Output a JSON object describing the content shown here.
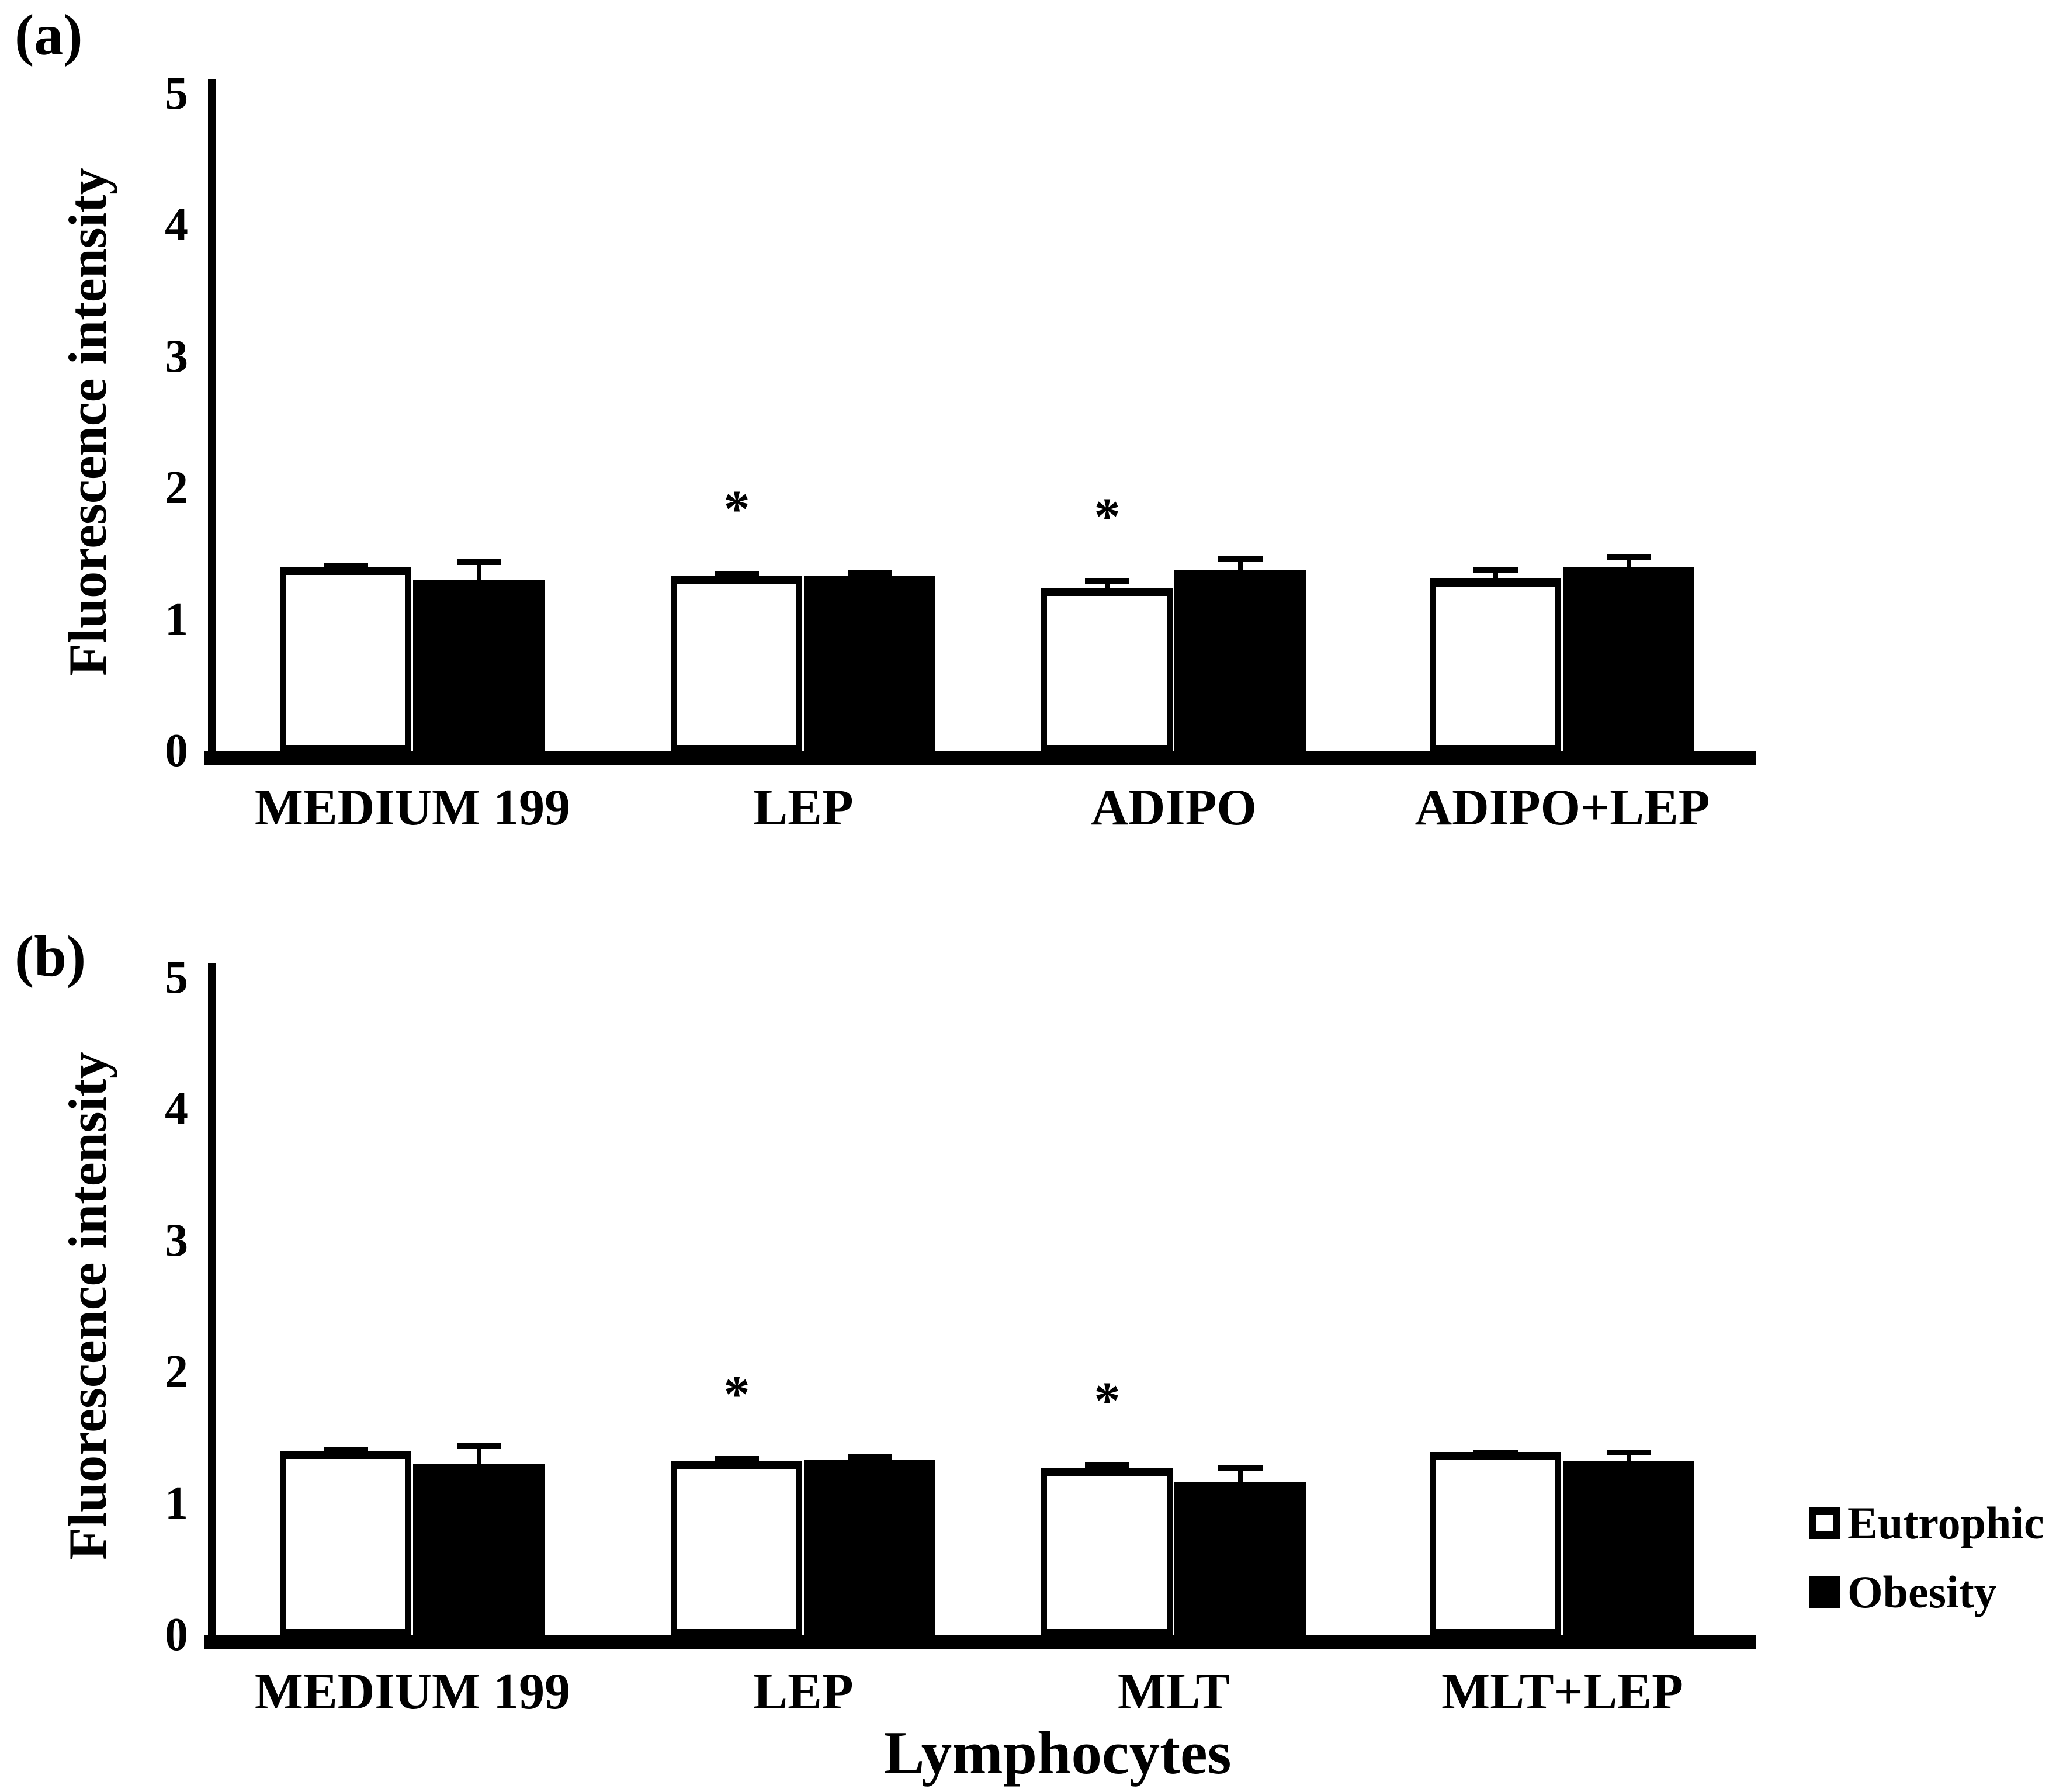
{
  "figure": {
    "background": "#ffffff",
    "ink_color": "#000000",
    "significance_marker": "*"
  },
  "legend": {
    "items": [
      {
        "label": "Eutrophic",
        "swatch": "open-square",
        "fill": "#ffffff",
        "border": "#000000"
      },
      {
        "label": "Obesity",
        "swatch": "filled-square",
        "fill": "#000000",
        "border": "#000000"
      }
    ]
  },
  "chart_data": [
    {
      "type": "bar",
      "panel_label": "(a)",
      "title": "",
      "xlabel": "",
      "ylabel": "Fluorescence intensity",
      "ylim": [
        0,
        5
      ],
      "yticks": [
        0,
        1,
        2,
        3,
        4,
        5
      ],
      "grid": false,
      "legend_position": "right of panel (b)",
      "categories": [
        "MEDIUM 199",
        "LEP",
        "ADIPO",
        "ADIPO+LEP"
      ],
      "series": [
        {
          "name": "Eutrophic",
          "color": "#ffffff",
          "values": [
            1.4,
            1.33,
            1.24,
            1.31
          ],
          "errors": [
            0.03,
            0.04,
            0.07,
            0.09
          ],
          "significant": [
            false,
            true,
            true,
            false
          ]
        },
        {
          "name": "Obesity",
          "color": "#000000",
          "values": [
            1.3,
            1.33,
            1.38,
            1.4
          ],
          "errors": [
            0.16,
            0.05,
            0.1,
            0.1
          ],
          "significant": [
            false,
            false,
            false,
            false
          ]
        }
      ]
    },
    {
      "type": "bar",
      "panel_label": "(b)",
      "title": "",
      "xlabel": "Lymphocytes",
      "ylabel": "Fluorescence intensity",
      "ylim": [
        0,
        5
      ],
      "yticks": [
        0,
        1,
        2,
        3,
        4,
        5
      ],
      "grid": false,
      "legend_position": "right",
      "categories": [
        "MEDIUM 199",
        "LEP",
        "MLT",
        "MLT+LEP"
      ],
      "series": [
        {
          "name": "Eutrophic",
          "color": "#ffffff",
          "values": [
            1.4,
            1.32,
            1.27,
            1.39
          ],
          "errors": [
            0.03,
            0.04,
            0.04,
            0.02
          ],
          "significant": [
            false,
            true,
            true,
            false
          ]
        },
        {
          "name": "Obesity",
          "color": "#000000",
          "values": [
            1.3,
            1.33,
            1.16,
            1.32
          ],
          "errors": [
            0.16,
            0.05,
            0.13,
            0.09
          ],
          "significant": [
            false,
            false,
            false,
            false
          ]
        }
      ]
    }
  ]
}
